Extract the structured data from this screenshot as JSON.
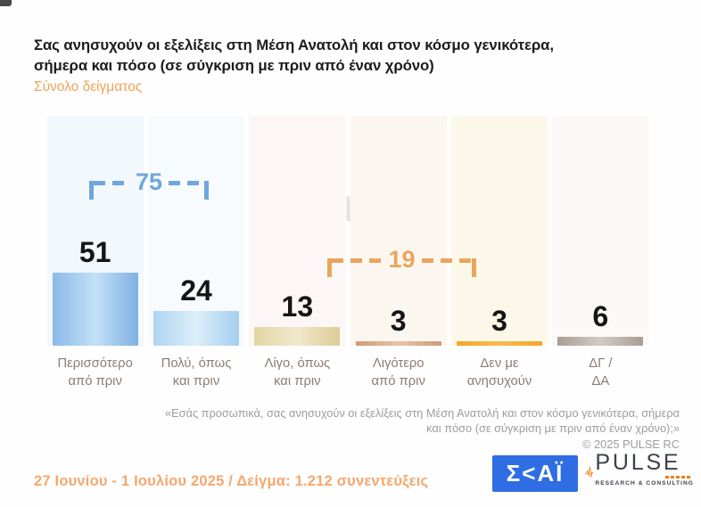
{
  "header": {
    "title_line1": "Σας ανησυχούν οι εξελίξεις στη Μέση Ανατολή και στον κόσμο γενικότερα,",
    "title_line2": "σήμερα και πόσο  (σε σύγκριση με πριν από έναν χρόνο)",
    "subtitle": "Σύνολο δείγματος"
  },
  "chart_data": {
    "type": "bar",
    "title": "Σας ανησυχούν οι εξελίξεις στη Μέση Ανατολή και στον κόσμο γενικότερα, σήμερα και πόσο (σε σύγκριση με πριν από έναν χρόνο)",
    "subtitle": "Σύνολο δείγματος",
    "unit": "percent",
    "categories": [
      "Περισσότερο από πριν",
      "Πολύ, όπως και πριν",
      "Λίγο, όπως και πριν",
      "Λιγότερο από πριν",
      "Δεν με ανησυχούν",
      "ΔΓ / ΔΑ"
    ],
    "categories_lines": [
      [
        "Περισσότερο",
        "από πριν"
      ],
      [
        "Πολύ, όπως",
        "και πριν"
      ],
      [
        "Λίγο, όπως",
        "και πριν"
      ],
      [
        "Λιγότερο",
        "από πριν"
      ],
      [
        "Δεν με",
        "ανησυχούν"
      ],
      [
        "ΔΓ /",
        "ΔΑ"
      ]
    ],
    "values": [
      51,
      24,
      13,
      3,
      3,
      6
    ],
    "ylim": [
      0,
      60
    ],
    "grid": false,
    "legend": false,
    "data_labels": true,
    "bar_colors": [
      [
        "#8ab9e8",
        "#c3e0f7",
        "#7fb0e2"
      ],
      [
        "#aed4f2",
        "#dceefa",
        "#a5cff0"
      ],
      [
        "#e3d6a4",
        "#f0e9cd",
        "#dccd97"
      ],
      [
        "#d09a75",
        "#e8c3ab",
        "#cf9a78"
      ],
      [
        "#f3a525",
        "#f8bc51",
        "#f3a525"
      ],
      [
        "#a89e95",
        "#d2cbc4",
        "#a89e95"
      ]
    ],
    "column_tints": [
      "#f2f8fc",
      "#f8fbfe",
      "#fcf7f6",
      "#fbf7f0",
      "#fbf8e9",
      "#fbf8f7"
    ],
    "groups": [
      {
        "label": "75",
        "value": 75,
        "sum_of": [
          "Περισσότερο από πριν",
          "Πολύ, όπως και πριν"
        ],
        "color": "#6ea7dc"
      },
      {
        "label": "19",
        "value": 19,
        "sum_of": [
          "Λίγο, όπως και πριν",
          "Λιγότερο από πριν",
          "Δεν με ανησυχούν"
        ],
        "color": "#e9a55e"
      }
    ]
  },
  "watermark": {
    "brand": "PULSE",
    "tagline": "RESEARCH & CONSULTING"
  },
  "footnote": {
    "line1": "«Εσάς προσωπικά, σας ανησυχούν οι εξελίξεις στη Μέση Ανατολή και στον κόσμο γενικότερα, σήμερα",
    "line2": "και πόσο (σε σύγκριση με πριν από έναν χρόνο);»",
    "copyright": "©  2025  PULSE RC"
  },
  "footer": {
    "fieldwork": "27 Ιουνίου - 1 Ιουλίου 2025  /  Δείγμα:  1.212 συνεντεύξεις",
    "skai_logo_text": "Σ<ΑΪ",
    "pulse_logo_text": "PULSE",
    "pulse_logo_tagline": "RESEARCH & CONSULTING"
  }
}
